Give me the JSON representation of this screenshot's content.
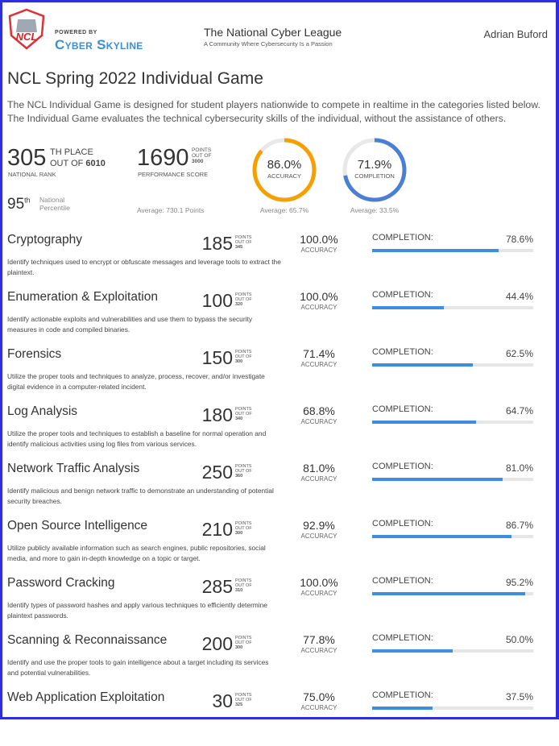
{
  "header": {
    "powered_by": "POWERED BY",
    "brand": "Cyber Skyline",
    "logo_text": "NCL",
    "site_title": "The National Cyber League",
    "site_subtitle": "A Community Where Cybersecurity Is a Passion",
    "user_name": "Adrian Buford"
  },
  "page": {
    "title": "NCL Spring 2022 Individual Game",
    "intro": "The NCL Individual Game is designed for student players nationwide to compete in realtime in the categories listed below. The Individual Game evaluates the technical cybersecurity skills of the individual, without the assistance of others."
  },
  "summary": {
    "rank": "305",
    "rank_suffix": "TH PLACE",
    "rank_out_of_label": "OUT OF",
    "rank_total": "6010",
    "rank_label": "NATIONAL RANK",
    "percentile": "95",
    "percentile_suffix": "th",
    "percentile_label": "National Percentile",
    "score": "1690",
    "score_points_label": "POINTS",
    "score_out_of_label": "OUT OF",
    "score_total": "3000",
    "score_label": "PERFORMANCE SCORE",
    "score_avg": "Average: 730.1 Points",
    "accuracy": "86.0%",
    "accuracy_value": 86.0,
    "accuracy_label": "ACCURACY",
    "accuracy_avg": "Average: 65.7%",
    "completion": "71.9%",
    "completion_value": 71.9,
    "completion_label": "COMPLETION",
    "completion_avg": "Average: 33.5%",
    "accuracy_color": "#f5a000",
    "completion_color": "#4a7fd8"
  },
  "labels": {
    "points": "POINTS",
    "out_of": "OUT OF",
    "accuracy": "ACCURACY",
    "completion": "COMPLETION:"
  },
  "categories": [
    {
      "name": "Cryptography",
      "desc": "Identify techniques used to encrypt or obfuscate messages and leverage tools to extract the plaintext.",
      "points": "185",
      "total": "345",
      "accuracy": "100.0%",
      "completion": "78.6%",
      "completion_value": 78.6
    },
    {
      "name": "Enumeration & Exploitation",
      "desc": "Identify actionable exploits and vulnerabilities and use them to bypass the security measures in code and compiled binaries.",
      "points": "100",
      "total": "320",
      "accuracy": "100.0%",
      "completion": "44.4%",
      "completion_value": 44.4
    },
    {
      "name": "Forensics",
      "desc": "Utilize the proper tools and techniques to analyze, process, recover, and/or investigate digital evidence in a computer-related incident.",
      "points": "150",
      "total": "300",
      "accuracy": "71.4%",
      "completion": "62.5%",
      "completion_value": 62.5
    },
    {
      "name": "Log Analysis",
      "desc": "Utilize the proper tools and techniques to establish a baseline for normal operation and identify malicious activities using log files from various services.",
      "points": "180",
      "total": "340",
      "accuracy": "68.8%",
      "completion": "64.7%",
      "completion_value": 64.7
    },
    {
      "name": "Network Traffic Analysis",
      "desc": "Identify malicious and benign network traffic to demonstrate an understanding of potential security breaches.",
      "points": "250",
      "total": "360",
      "accuracy": "81.0%",
      "completion": "81.0%",
      "completion_value": 81.0
    },
    {
      "name": "Open Source Intelligence",
      "desc": "Utilize publicly available information such as search engines, public repositories, social media, and more to gain in-depth knowledge on a topic or target.",
      "points": "210",
      "total": "300",
      "accuracy": "92.9%",
      "completion": "86.7%",
      "completion_value": 86.7
    },
    {
      "name": "Password Cracking",
      "desc": "Identify types of password hashes and apply various techniques to efficiently determine plaintext passwords.",
      "points": "285",
      "total": "310",
      "accuracy": "100.0%",
      "completion": "95.2%",
      "completion_value": 95.2
    },
    {
      "name": "Scanning & Reconnaissance",
      "desc": "Identify and use the proper tools to gain intelligence about a target including its services and potential vulnerabilities.",
      "points": "200",
      "total": "300",
      "accuracy": "77.8%",
      "completion": "50.0%",
      "completion_value": 50.0
    },
    {
      "name": "Web Application Exploitation",
      "desc": "",
      "points": "30",
      "total": "325",
      "accuracy": "75.0%",
      "completion": "37.5%",
      "completion_value": 37.5
    }
  ]
}
